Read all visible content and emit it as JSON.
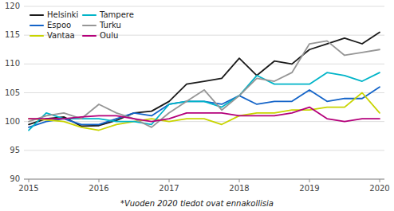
{
  "chart_data": {
    "type": "line",
    "categories": [
      "2015",
      null,
      null,
      null,
      "2016",
      null,
      null,
      null,
      "2017",
      null,
      null,
      null,
      "2018",
      null,
      null,
      null,
      "2019",
      null,
      null,
      null,
      "2020"
    ],
    "series": [
      {
        "name": "Helsinki",
        "color": "#1a1a1a",
        "values": [
          99.5,
          100.5,
          100.8,
          99.2,
          99.3,
          100.2,
          101.5,
          101.8,
          103.5,
          106.5,
          107.0,
          107.5,
          111.0,
          108.0,
          110.5,
          110.0,
          112.5,
          113.5,
          114.5,
          113.5,
          115.5
        ]
      },
      {
        "name": "Espoo",
        "color": "#1464c8",
        "values": [
          99.0,
          100.0,
          100.5,
          99.5,
          99.5,
          100.5,
          101.5,
          101.0,
          103.0,
          103.5,
          103.5,
          103.0,
          104.5,
          103.0,
          103.5,
          103.5,
          105.5,
          103.5,
          104.0,
          104.0,
          106.0
        ]
      },
      {
        "name": "Vantaa",
        "color": "#c8d400",
        "values": [
          100.5,
          100.3,
          100.0,
          99.0,
          98.5,
          99.5,
          100.0,
          100.5,
          100.0,
          100.5,
          100.5,
          99.5,
          101.0,
          101.5,
          101.5,
          102.0,
          102.0,
          102.5,
          102.5,
          105.0,
          101.5
        ]
      },
      {
        "name": "Tampere",
        "color": "#00b4c8",
        "values": [
          98.5,
          101.5,
          100.5,
          100.5,
          100.5,
          100.0,
          100.0,
          99.5,
          103.0,
          103.5,
          103.5,
          102.5,
          104.5,
          108.0,
          106.5,
          106.5,
          106.5,
          108.5,
          108.0,
          107.0,
          108.5
        ]
      },
      {
        "name": "Turku",
        "color": "#969696",
        "values": [
          100.0,
          101.0,
          101.5,
          100.5,
          103.0,
          101.5,
          100.5,
          99.0,
          101.5,
          103.5,
          105.5,
          102.0,
          104.5,
          107.5,
          107.0,
          108.5,
          113.5,
          114.0,
          111.5,
          112.0,
          112.5
        ]
      },
      {
        "name": "Oulu",
        "color": "#b4007a",
        "values": [
          100.5,
          100.5,
          100.5,
          100.8,
          101.0,
          101.0,
          100.5,
          100.0,
          100.5,
          101.5,
          101.5,
          101.5,
          101.0,
          101.0,
          101.0,
          101.5,
          102.5,
          100.5,
          100.0,
          100.5,
          100.5
        ]
      }
    ],
    "ylim": [
      90,
      120
    ],
    "yticks": [
      90,
      95,
      100,
      105,
      110,
      115,
      120
    ],
    "grid": true,
    "legend": "upper left",
    "annotations": [
      "*Vuoden 2020 tiedot ovat ennakollisia"
    ]
  }
}
